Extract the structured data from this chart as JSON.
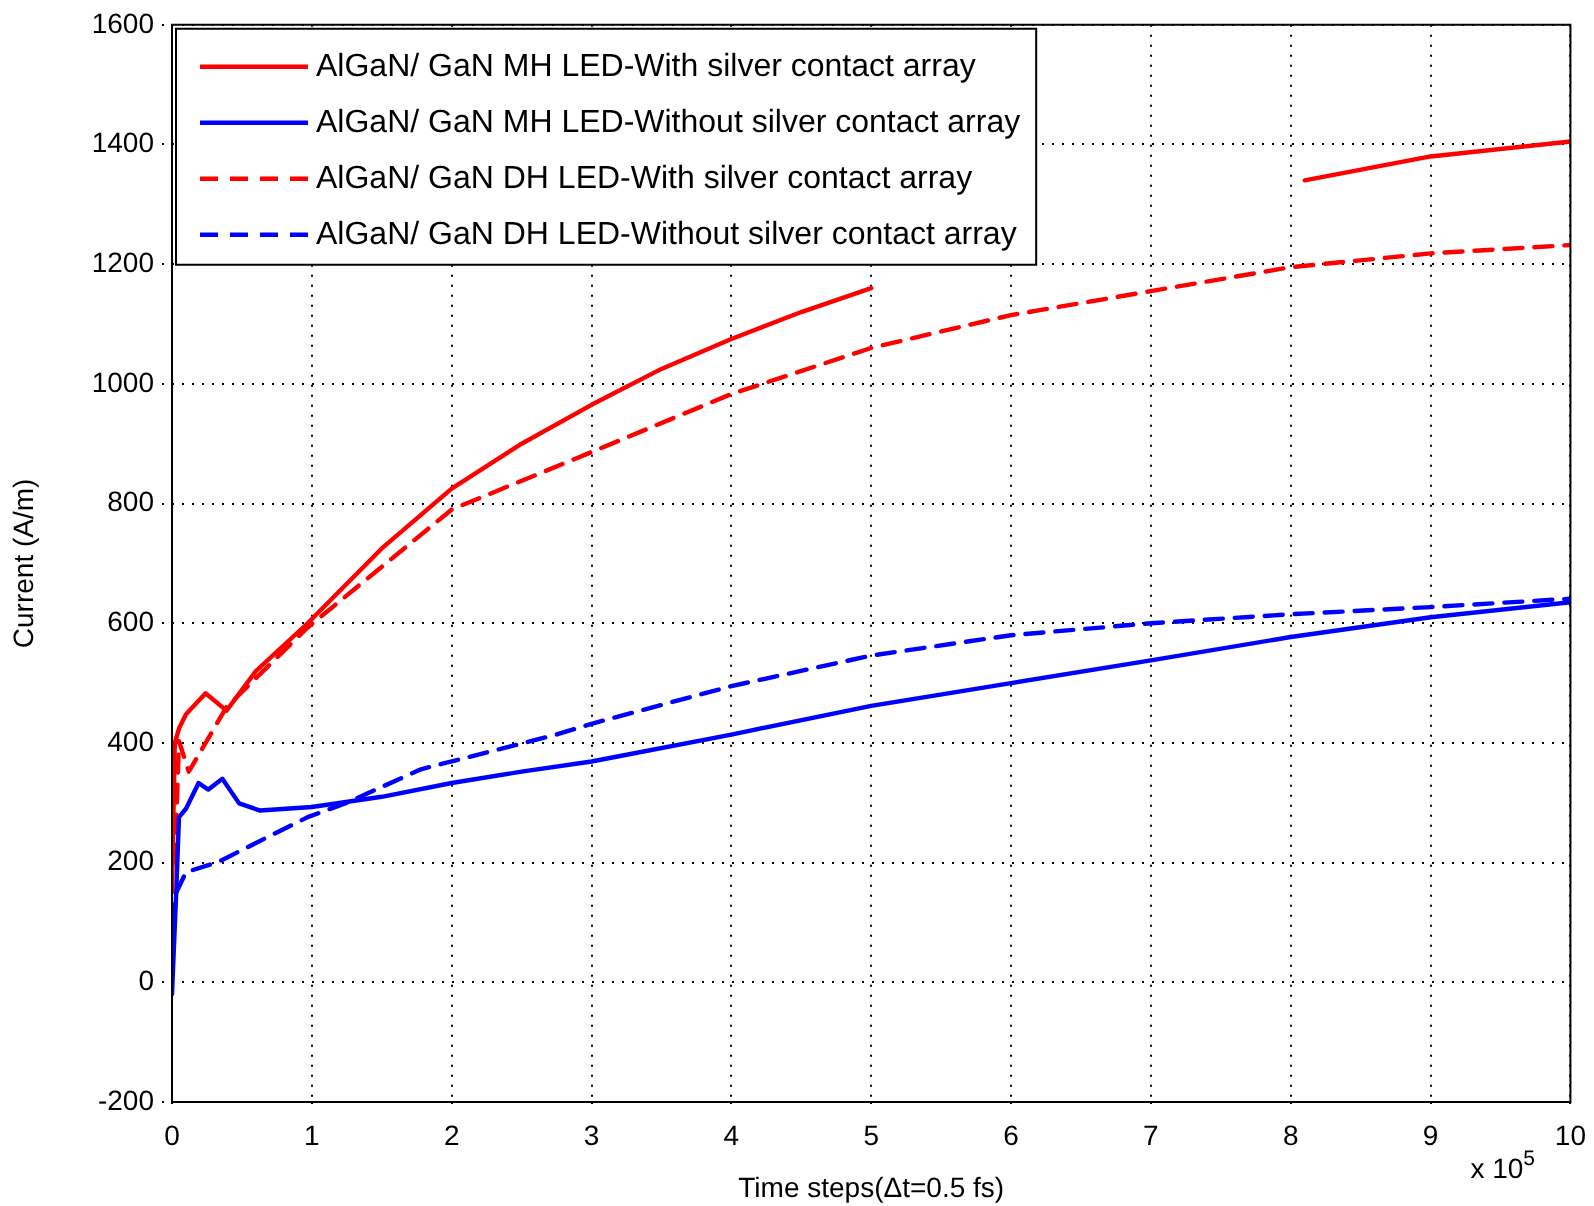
{
  "chart_data": {
    "type": "line",
    "xlabel": "Time steps(Δt=0.5 fs)",
    "ylabel": "Current (A/m)",
    "xlim": [
      0,
      10
    ],
    "xticks": [
      0,
      1,
      2,
      3,
      4,
      5,
      6,
      7,
      8,
      9,
      10
    ],
    "ylim": [
      -200,
      1600
    ],
    "yticks": [
      -200,
      0,
      200,
      400,
      600,
      800,
      1000,
      1200,
      1400,
      1600
    ],
    "grid": true,
    "legend": "top left",
    "marker": "none",
    "annotations": [
      "x 10$^{5}$"
    ],
    "series": [
      {
        "name": "AlGaN/ GaN MH LED-With silver contact array",
        "color": "#ff0000",
        "line_style": "solid",
        "x": [
          0,
          0.02,
          0.05,
          0.1,
          0.24,
          0.39,
          0.6,
          0.97,
          1.5,
          2,
          2.5,
          3,
          3.5,
          4,
          4.5,
          5,
          5.5,
          6,
          7,
          8,
          8.1,
          9,
          10
        ],
        "values": [
          150,
          400,
          424,
          448,
          483,
          454,
          520,
          600,
          725,
          825,
          900,
          965,
          1025,
          1075,
          1120,
          1160,
          null,
          null,
          null,
          null,
          1340,
          1380,
          1405
        ]
      },
      {
        "name": "AlGaN/ GaN MH LED-Without silver contact array",
        "color": "#0000ff",
        "line_style": "solid",
        "x": [
          0,
          0.03,
          0.05,
          0.1,
          0.19,
          0.26,
          0.36,
          0.48,
          0.63,
          1,
          1.5,
          2,
          2.5,
          3,
          4,
          5,
          6,
          7,
          8,
          9,
          10
        ],
        "values": [
          -20,
          150,
          276,
          290,
          333,
          322,
          340,
          299,
          287,
          293,
          310,
          333,
          352,
          369,
          414,
          462,
          500,
          538,
          577,
          610,
          635
        ]
      },
      {
        "name": "AlGaN/ GaN DH LED-With silver contact array",
        "color": "#ff0000",
        "line_style": "dashed",
        "x": [
          0.02,
          0.05,
          0.12,
          0.39,
          0.97,
          2,
          3,
          4,
          5,
          6,
          7,
          8,
          9,
          10
        ],
        "values": [
          200,
          403,
          352,
          460,
          593,
          790,
          886,
          983,
          1060,
          1115,
          1155,
          1195,
          1218,
          1232
        ]
      },
      {
        "name": "AlGaN/ GaN DH LED-Without silver contact array",
        "color": "#0000ff",
        "line_style": "dashed",
        "x": [
          0,
          0.02,
          0.1,
          0.33,
          0.67,
          0.97,
          1.25,
          1.78,
          2.75,
          3,
          4,
          5,
          6,
          7,
          8,
          9,
          10
        ],
        "values": [
          50,
          145,
          184,
          201,
          241,
          276,
          300,
          356,
          414,
          432,
          495,
          546,
          580,
          600,
          615,
          627,
          641
        ]
      }
    ]
  }
}
